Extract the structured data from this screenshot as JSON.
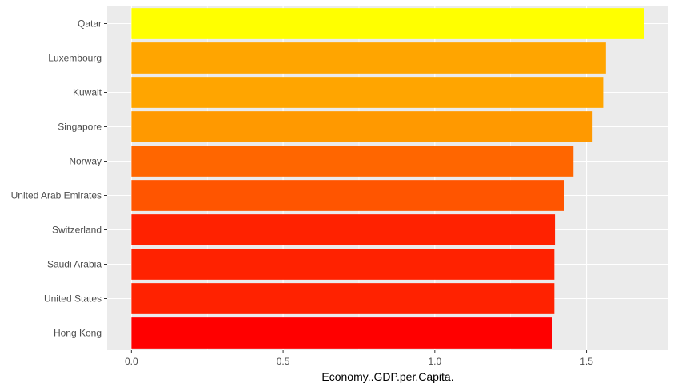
{
  "chart_data": {
    "type": "bar",
    "orientation": "horizontal",
    "title": "",
    "xlabel": "Economy..GDP.per.Capita.",
    "ylabel": "",
    "categories": [
      "Qatar",
      "Luxembourg",
      "Kuwait",
      "Singapore",
      "Norway",
      "United Arab Emirates",
      "Switzerland",
      "Saudi Arabia",
      "United States",
      "Hong Kong"
    ],
    "values": [
      1.69,
      1.564,
      1.555,
      1.52,
      1.457,
      1.425,
      1.396,
      1.394,
      1.394,
      1.386
    ],
    "bar_colors": [
      "#FFFF00",
      "#FFA500",
      "#FFA500",
      "#FF9900",
      "#FF6600",
      "#FF5500",
      "#FF2200",
      "#FF2200",
      "#FF2200",
      "#FF0000"
    ],
    "xlim": [
      -0.08,
      1.77
    ],
    "x_ticks": [
      0.0,
      0.5,
      1.0,
      1.5
    ],
    "x_tick_labels": [
      "0.0",
      "0.5",
      "1.0",
      "1.5"
    ],
    "grid": true,
    "legend": "none",
    "panel_background": "#EBEBEB",
    "gridline_color": "#FFFFFF"
  }
}
